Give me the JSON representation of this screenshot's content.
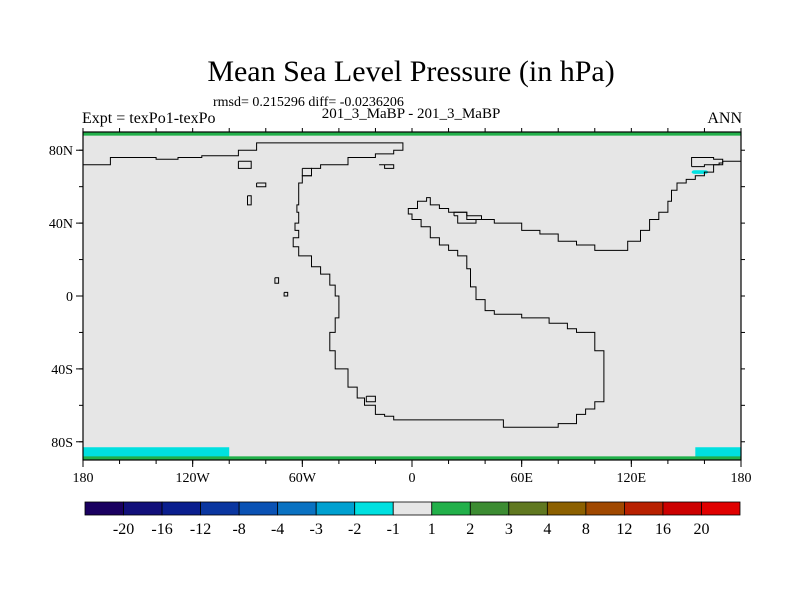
{
  "title": "Mean Sea Level Pressure (in hPa)",
  "stats_text": "rmsd= 0.215296 diff= -0.0236206",
  "case_text": "201_3_MaBP - 201_3_MaBP",
  "left_label": "Expt = texPo1-texPo",
  "right_label": "ANN",
  "chart_data": {
    "type": "heatmap",
    "projection": "cylindrical-equidistant",
    "title": "Mean Sea Level Pressure (in hPa)",
    "x_range": [
      -180,
      180
    ],
    "y_range": [
      -90,
      90
    ],
    "x_ticks": [
      {
        "value": -180,
        "label": "180"
      },
      {
        "value": -120,
        "label": "120W"
      },
      {
        "value": -60,
        "label": "60W"
      },
      {
        "value": 0,
        "label": "0"
      },
      {
        "value": 60,
        "label": "60E"
      },
      {
        "value": 120,
        "label": "120E"
      },
      {
        "value": 180,
        "label": "180"
      }
    ],
    "y_ticks": [
      {
        "value": 80,
        "label": "80N"
      },
      {
        "value": 40,
        "label": "40N"
      },
      {
        "value": 0,
        "label": "0"
      },
      {
        "value": -40,
        "label": "40S"
      },
      {
        "value": -80,
        "label": "80S"
      }
    ],
    "background_level": "-1 to 1",
    "highlighted_regions": [
      {
        "level": "-2 to -1",
        "color": "#00e0e0",
        "lon": [
          -180,
          -100
        ],
        "lat": [
          -89,
          -83
        ]
      },
      {
        "level": "-2 to -1",
        "color": "#00e0e0",
        "lon": [
          155,
          180
        ],
        "lat": [
          -89,
          -83
        ]
      },
      {
        "level": "-2 to -1",
        "color": "#00e0e0",
        "lon": [
          153,
          162
        ],
        "lat": [
          67,
          69
        ]
      },
      {
        "level": "1 to 2",
        "color": "#22b04a",
        "lon": [
          -180,
          180
        ],
        "lat": [
          88,
          90
        ]
      },
      {
        "level": "1 to 2",
        "color": "#22b04a",
        "lon": [
          -180,
          180
        ],
        "lat": [
          -90,
          -88
        ]
      }
    ],
    "colorbar": {
      "labels": [
        "-20",
        "-16",
        "-12",
        "-8",
        "-4",
        "-3",
        "-2",
        "-1",
        "1",
        "2",
        "3",
        "4",
        "8",
        "12",
        "16",
        "20"
      ],
      "colors": [
        "#1a0060",
        "#12107a",
        "#0a1e8e",
        "#0a36a0",
        "#0a52b4",
        "#0a72c2",
        "#00a0d0",
        "#00e0e0",
        "#e6e6e6",
        "#22b04a",
        "#3c8c32",
        "#607820",
        "#8c6000",
        "#a04800",
        "#b82000",
        "#cc0000",
        "#e00000"
      ]
    }
  }
}
